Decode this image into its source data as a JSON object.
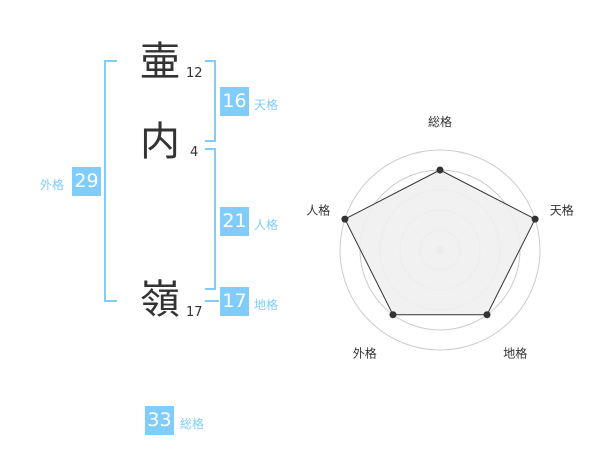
{
  "name": {
    "chars": [
      {
        "char": "壷",
        "strokes": "12"
      },
      {
        "char": "内",
        "strokes": "4"
      },
      {
        "char": "嶺",
        "strokes": "17"
      }
    ]
  },
  "kaku": {
    "tenkaku": {
      "value": "16",
      "label": "天格"
    },
    "jinkaku": {
      "value": "21",
      "label": "人格"
    },
    "chikaku": {
      "value": "17",
      "label": "地格"
    },
    "gaikaku": {
      "value": "29",
      "label": "外格"
    },
    "soukaku": {
      "value": "33",
      "label": "総格"
    }
  },
  "colors": {
    "accent": "#80cdfb",
    "text": "#333333",
    "fill": "#f0f0f0",
    "ring": "#cccccc"
  },
  "chart_data": {
    "type": "radar",
    "categories": [
      "総格",
      "天格",
      "地格",
      "外格",
      "人格"
    ],
    "values": [
      4,
      5,
      4,
      4,
      5
    ],
    "rlim": [
      0,
      5
    ],
    "grid": true
  }
}
